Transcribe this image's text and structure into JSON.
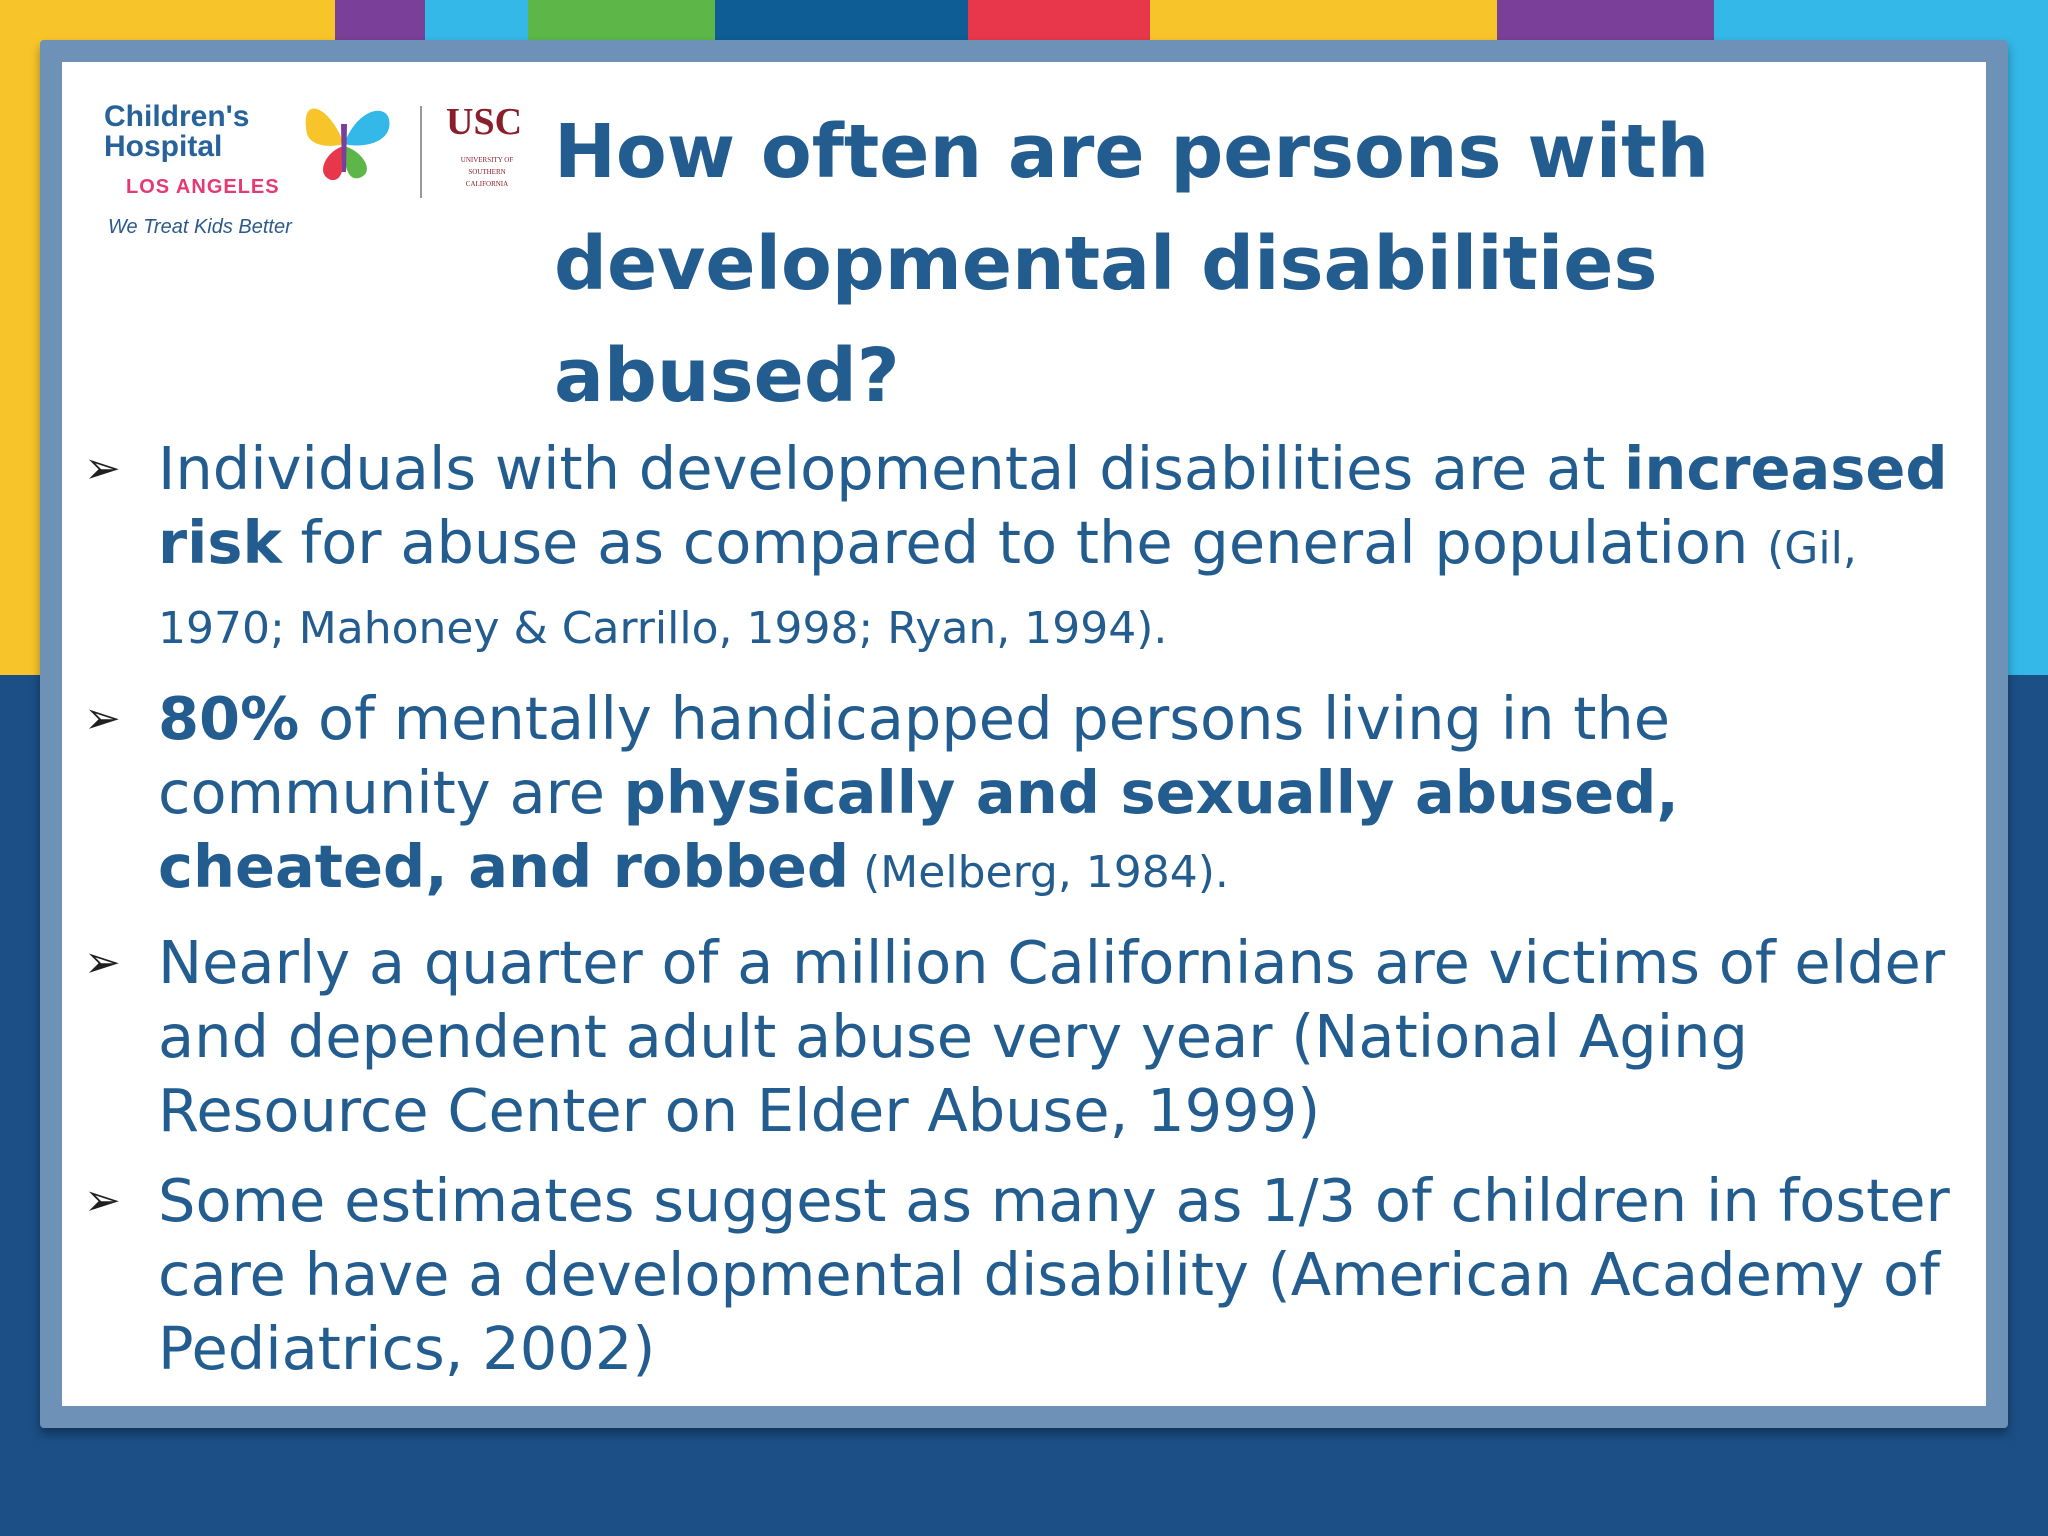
{
  "colors": {
    "navy": "#1b4f86",
    "title_blue": "#235c8f",
    "yellow": "#f7c52a",
    "cyan": "#33b8e8",
    "green": "#5cb748",
    "purple": "#7a3f98",
    "red": "#e8374a",
    "dark_blue": "#0e5d95"
  },
  "logos": {
    "chla": {
      "line1": "Children's",
      "line2": "Hospital",
      "line3": "LOS ANGELES",
      "tagline": "We Treat Kids Better"
    },
    "usc": {
      "word": "USC",
      "sub": "UNIVERSITY OF SOUTHERN CALIFORNIA"
    }
  },
  "title": "How often are persons with developmental disabilities abused?",
  "bullets": [
    {
      "arrow": "➢",
      "b1_pre": "Individuals with developmental disabilities are at ",
      "b1_bold": "increased risk",
      "b1_post": " for abuse as compared to the general population ",
      "b1_cite": "(Gil, 1970; Mahoney & Carrillo, 1998; Ryan, 1994)."
    },
    {
      "arrow": "➢",
      "b2_bold1": "80%",
      "b2_mid": " of mentally handicapped persons living in the community are ",
      "b2_bold2": "physically and sexually abused, cheated, and robbed",
      "b2_cite": " (Melberg, 1984)."
    },
    {
      "arrow": "➢",
      "text": "Nearly a quarter of a million Californians are victims of elder and dependent adult abuse very year (National Aging Resource Center on Elder Abuse, 1999)"
    },
    {
      "arrow": "➢",
      "text": "Some estimates suggest as many as 1/3 of children in foster care have a developmental disability (American Academy of Pediatrics, 2002)"
    }
  ]
}
